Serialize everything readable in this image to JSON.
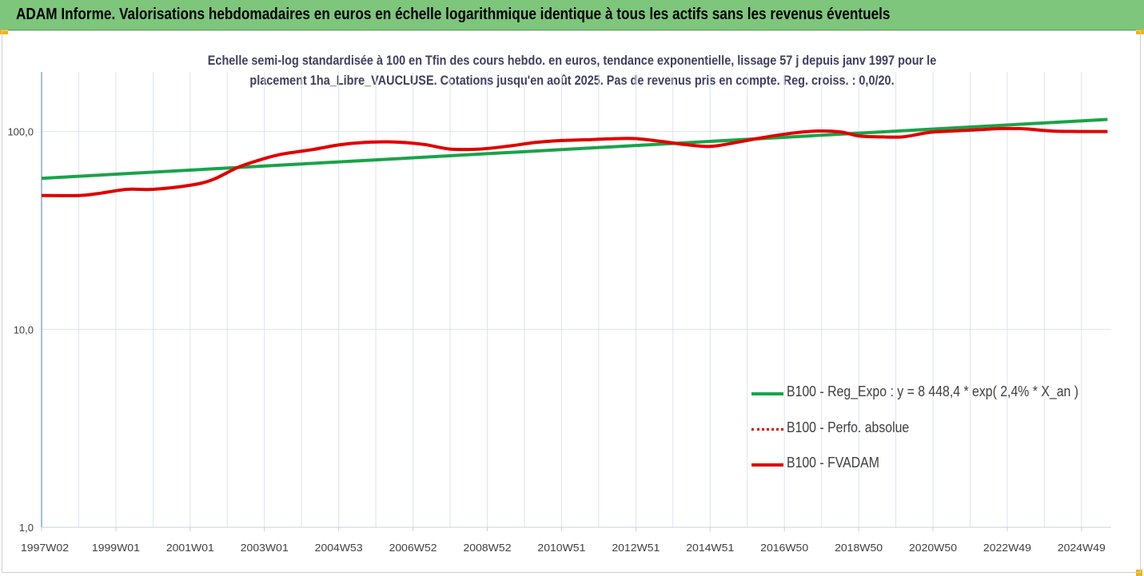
{
  "header": {
    "title": "ADAM Informe. Valorisations hebdomadaires en euros en échelle logarithmique identique à tous les actifs sans les revenus éventuels"
  },
  "colors": {
    "banner": "#7dc67b",
    "green_series": "#1aa34a",
    "red_series": "#e00000",
    "grid": "#dbe4ee",
    "axis": "#4a7ebb"
  },
  "chart_data": {
    "type": "line",
    "title_line1": "Echelle semi-log standardisée à 100 en Tfin des cours hebdo. en euros, tendance exponentielle, lissage 57 j depuis janv 1997 pour le",
    "title_line2": "placement 1ha_Libre_VAUCLUSE. Cotations jusqu'en août 2025. Pas de revenus pris en compte. Reg. croiss. : 0,0/20.",
    "y_scale": "log",
    "ylim": [
      1,
      200
    ],
    "xlim": [
      1997.0,
      2025.8
    ],
    "y_ticks": [
      {
        "value": 1,
        "label": "1,0"
      },
      {
        "value": 10,
        "label": "10,0"
      },
      {
        "value": 100,
        "label": "100,0"
      }
    ],
    "x_ticks": [
      {
        "value": 1997.0,
        "label": "1997W02"
      },
      {
        "value": 1999.0,
        "label": "1999W01"
      },
      {
        "value": 2001.0,
        "label": "2001W01"
      },
      {
        "value": 2003.0,
        "label": "2003W01"
      },
      {
        "value": 2005.0,
        "label": "2004W53"
      },
      {
        "value": 2007.0,
        "label": "2006W52"
      },
      {
        "value": 2009.0,
        "label": "2008W52"
      },
      {
        "value": 2011.0,
        "label": "2010W51"
      },
      {
        "value": 2013.0,
        "label": "2012W51"
      },
      {
        "value": 2015.0,
        "label": "2014W51"
      },
      {
        "value": 2017.0,
        "label": "2016W50"
      },
      {
        "value": 2019.0,
        "label": "2018W50"
      },
      {
        "value": 2021.0,
        "label": "2020W50"
      },
      {
        "value": 2023.0,
        "label": "2022W49"
      },
      {
        "value": 2025.0,
        "label": "2024W49"
      }
    ],
    "grid": true,
    "legend_position": "bottom-right",
    "series": [
      {
        "name": "B100 - Reg_Expo : y = 8 448,4 * exp( 2,4% *  X_an )",
        "style": "solid",
        "color": "#1aa34a",
        "x": [
          1997.0,
          2025.7
        ],
        "y": [
          58,
          115
        ]
      },
      {
        "name": "B100 - Perfo. absolue",
        "style": "dotted",
        "color": "#e00000",
        "x": [],
        "y": []
      },
      {
        "name": "B100 - FVADAM",
        "style": "solid",
        "color": "#e00000",
        "x": [
          1997.0,
          1998.0,
          1998.5,
          1999.3,
          2000.0,
          2001.0,
          2001.6,
          2002.3,
          2003.0,
          2003.5,
          2004.3,
          2005.0,
          2005.7,
          2006.5,
          2007.3,
          2008.0,
          2008.8,
          2009.5,
          2010.3,
          2011.0,
          2011.8,
          2012.5,
          2013.0,
          2013.7,
          2014.3,
          2015.0,
          2015.7,
          2016.4,
          2017.2,
          2017.9,
          2018.5,
          2019.0,
          2019.5,
          2020.2,
          2020.9,
          2021.5,
          2022.2,
          2022.9,
          2023.5,
          2024.2,
          2024.9,
          2025.7
        ],
        "y": [
          47.5,
          47.5,
          48.5,
          51,
          51,
          53.5,
          57,
          66,
          73,
          77,
          81,
          85.5,
          88,
          88.5,
          86,
          81.5,
          81.5,
          84,
          88,
          90,
          91,
          92,
          92,
          89,
          86,
          84,
          88,
          93,
          98,
          100.5,
          99.5,
          95,
          94,
          94,
          99,
          100.5,
          102,
          103.5,
          103,
          100.5,
          100,
          100
        ]
      }
    ]
  }
}
